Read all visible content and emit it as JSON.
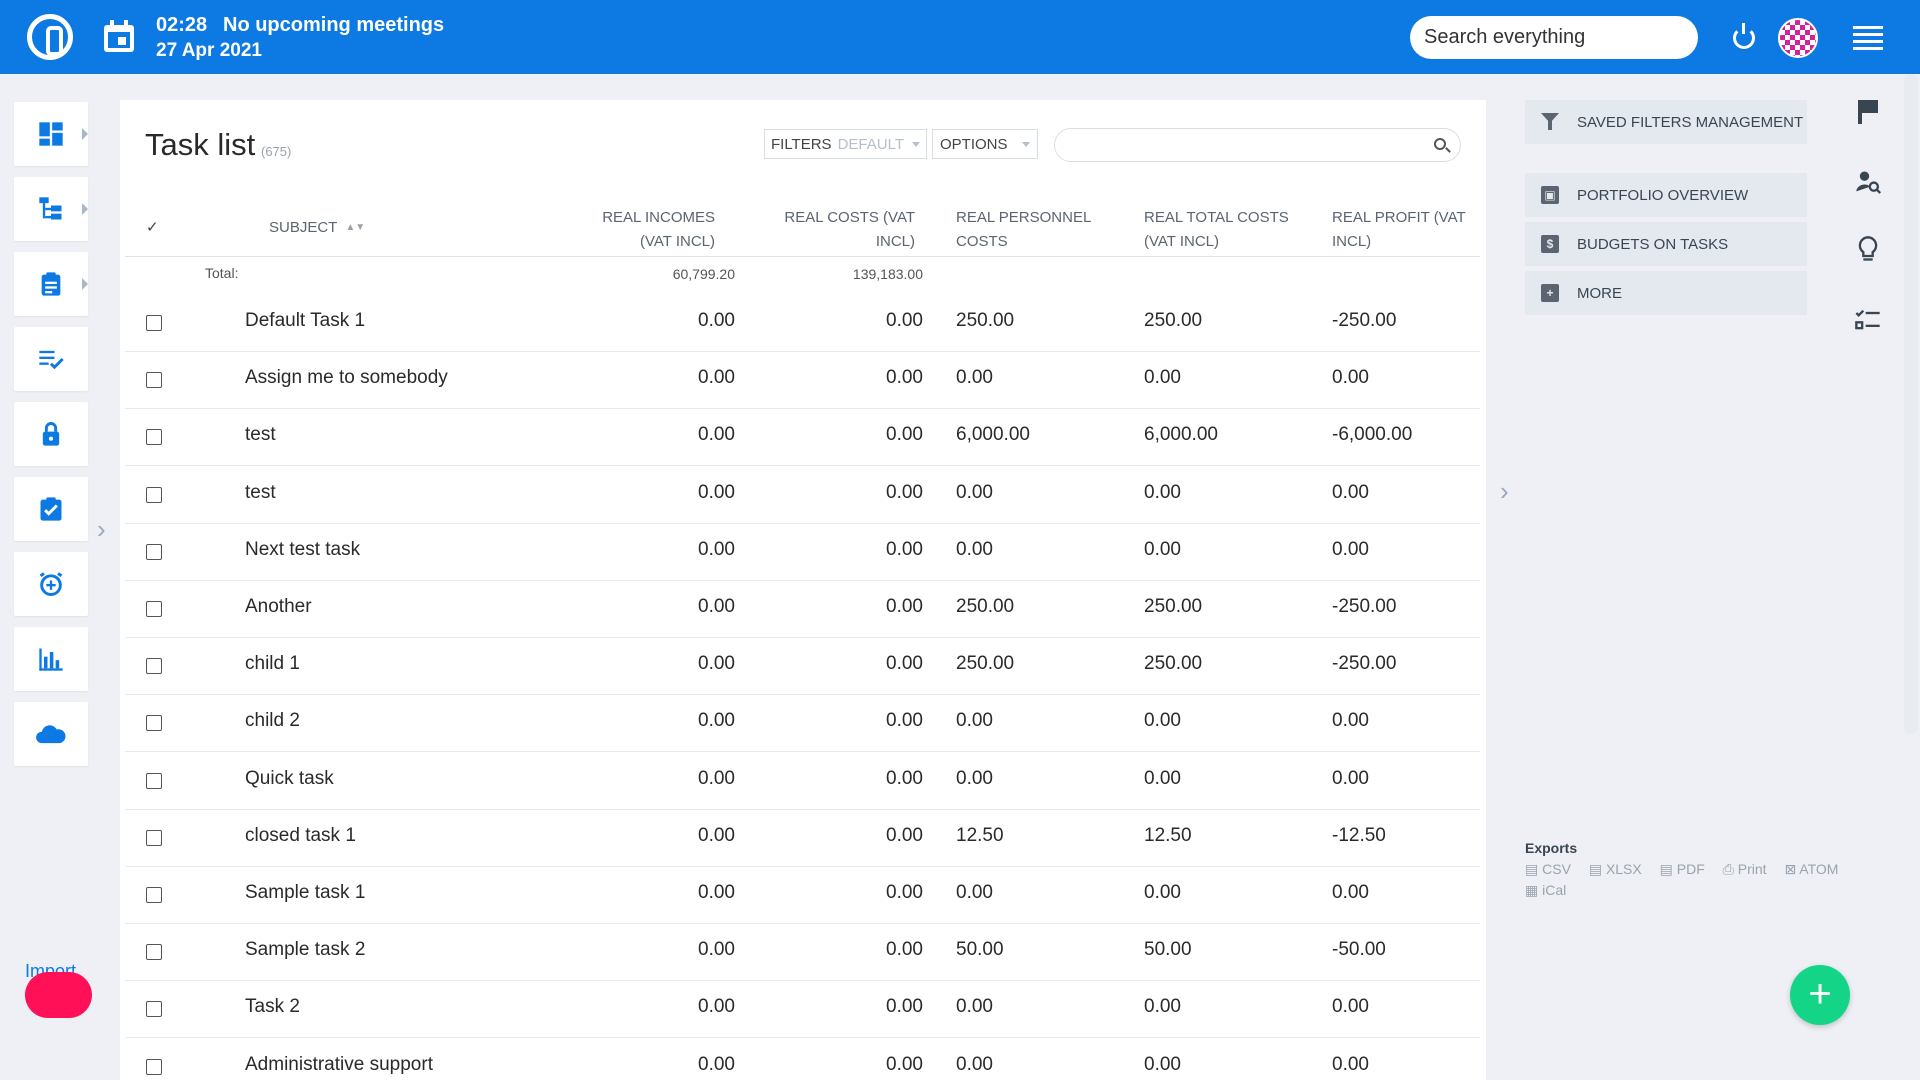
{
  "topbar": {
    "time": "02:28",
    "meeting_status": "No upcoming meetings",
    "date": "27 Apr 2021",
    "search_placeholder": "Search everything",
    "accent": "#0d79e3"
  },
  "left_nav": {
    "items": [
      {
        "icon": "dashboard-icon"
      },
      {
        "icon": "hierarchy-icon"
      },
      {
        "icon": "clipboard-icon"
      },
      {
        "icon": "checklist-icon"
      },
      {
        "icon": "lock-icon"
      },
      {
        "icon": "task-check-icon"
      },
      {
        "icon": "alarm-icon"
      },
      {
        "icon": "bar-chart-icon"
      },
      {
        "icon": "cloud-icon"
      }
    ],
    "import_label": "Import"
  },
  "main": {
    "title": "Task list",
    "count": "(675)",
    "filters_label": "FILTERS",
    "filters_value": "DEFAULT",
    "options_label": "OPTIONS",
    "columns": {
      "check": "✓",
      "subject": "SUBJECT",
      "real_incomes": "REAL INCOMES (VAT INCL)",
      "real_costs": "REAL COSTS (VAT INCL)",
      "real_personnel": "REAL PERSONNEL COSTS",
      "real_total": "REAL TOTAL COSTS (VAT INCL)",
      "real_profit": "REAL PROFIT (VAT INCL)"
    },
    "totals": {
      "label": "Total:",
      "real_incomes": "60,799.20",
      "real_costs": "139,183.00"
    },
    "rows": [
      {
        "subject": "Default Task 1",
        "inc": "0.00",
        "cost": "0.00",
        "pers": "250.00",
        "total": "250.00",
        "profit": "-250.00"
      },
      {
        "subject": "Assign me to somebody",
        "inc": "0.00",
        "cost": "0.00",
        "pers": "0.00",
        "total": "0.00",
        "profit": "0.00"
      },
      {
        "subject": "test",
        "inc": "0.00",
        "cost": "0.00",
        "pers": "6,000.00",
        "total": "6,000.00",
        "profit": "-6,000.00"
      },
      {
        "subject": "test",
        "inc": "0.00",
        "cost": "0.00",
        "pers": "0.00",
        "total": "0.00",
        "profit": "0.00"
      },
      {
        "subject": "Next test task",
        "inc": "0.00",
        "cost": "0.00",
        "pers": "0.00",
        "total": "0.00",
        "profit": "0.00"
      },
      {
        "subject": "Another",
        "inc": "0.00",
        "cost": "0.00",
        "pers": "250.00",
        "total": "250.00",
        "profit": "-250.00"
      },
      {
        "subject": "child 1",
        "inc": "0.00",
        "cost": "0.00",
        "pers": "250.00",
        "total": "250.00",
        "profit": "-250.00"
      },
      {
        "subject": "child 2",
        "inc": "0.00",
        "cost": "0.00",
        "pers": "0.00",
        "total": "0.00",
        "profit": "0.00"
      },
      {
        "subject": "Quick task",
        "inc": "0.00",
        "cost": "0.00",
        "pers": "0.00",
        "total": "0.00",
        "profit": "0.00"
      },
      {
        "subject": "closed task 1",
        "inc": "0.00",
        "cost": "0.00",
        "pers": "12.50",
        "total": "12.50",
        "profit": "-12.50"
      },
      {
        "subject": "Sample task 1",
        "inc": "0.00",
        "cost": "0.00",
        "pers": "0.00",
        "total": "0.00",
        "profit": "0.00"
      },
      {
        "subject": "Sample task 2",
        "inc": "0.00",
        "cost": "0.00",
        "pers": "50.00",
        "total": "50.00",
        "profit": "-50.00"
      },
      {
        "subject": "Task 2",
        "inc": "0.00",
        "cost": "0.00",
        "pers": "0.00",
        "total": "0.00",
        "profit": "0.00"
      },
      {
        "subject": "Administrative support",
        "inc": "0.00",
        "cost": "0.00",
        "pers": "0.00",
        "total": "0.00",
        "profit": "0.00"
      }
    ]
  },
  "right_panel": {
    "saved_filters": "SAVED FILTERS MANAGEMENT",
    "portfolio": "PORTFOLIO OVERVIEW",
    "budgets": "BUDGETS ON TASKS",
    "more": "MORE",
    "exports_title": "Exports",
    "exports": [
      "CSV",
      "XLSX",
      "PDF",
      "Print",
      "ATOM",
      "iCal"
    ]
  },
  "right_rail": {
    "icons": [
      "flag-icon",
      "user-search-icon",
      "lightbulb-icon",
      "checklist-icon"
    ]
  },
  "fab_label": "+"
}
